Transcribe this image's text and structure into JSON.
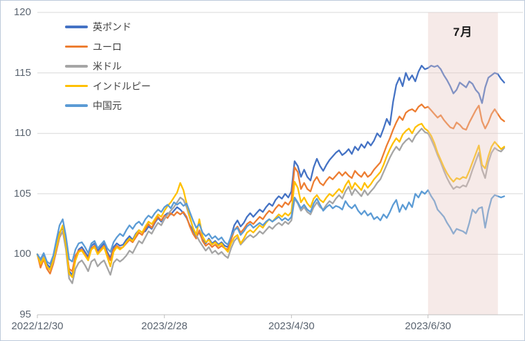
{
  "chart_data": {
    "type": "line",
    "title": "",
    "grid": "horizontal",
    "legend_position": "top-left-vertical",
    "y_axis": {
      "min": 95,
      "max": 120,
      "step": 5
    },
    "x_ticks": [
      {
        "label": "2022/12/30",
        "index": 0
      },
      {
        "label": "2023/2/28",
        "index": 40
      },
      {
        "label": "2023/4/30",
        "index": 80
      },
      {
        "label": "2023/6/30",
        "index": 123
      }
    ],
    "highlight": {
      "label": "7月",
      "start_index": 123,
      "end_index": 145,
      "color": "#e8c8c2",
      "opacity": 0.38
    },
    "axis_color": "#bfbfbf",
    "gridline_color": "#d9d9d9",
    "series": [
      {
        "name": "英ポンド",
        "color": "#4472C4",
        "values": [
          100.0,
          99.5,
          99.9,
          99.2,
          98.9,
          99.6,
          100.8,
          101.8,
          102.2,
          101.0,
          98.6,
          98.3,
          99.6,
          100.4,
          100.6,
          100.2,
          99.8,
          100.7,
          100.9,
          100.3,
          100.6,
          100.9,
          100.2,
          99.7,
          100.6,
          100.9,
          100.7,
          100.8,
          101.2,
          101.5,
          101.2,
          101.7,
          102.0,
          101.8,
          101.9,
          102.3,
          102.1,
          102.6,
          103.0,
          102.7,
          103.2,
          103.4,
          103.3,
          103.6,
          103.9,
          103.7,
          103.4,
          103.0,
          102.4,
          102.0,
          101.5,
          101.8,
          101.2,
          100.9,
          101.3,
          100.9,
          101.1,
          100.8,
          101.0,
          100.7,
          100.6,
          101.5,
          102.4,
          102.8,
          102.3,
          102.6,
          103.1,
          103.4,
          103.1,
          103.4,
          103.7,
          103.5,
          103.9,
          104.2,
          104.0,
          104.5,
          104.8,
          104.6,
          105.0,
          104.7,
          105.2,
          107.7,
          107.3,
          106.4,
          107.0,
          106.4,
          106.1,
          107.2,
          107.9,
          107.3,
          106.9,
          107.4,
          107.8,
          108.1,
          108.4,
          108.6,
          108.2,
          108.4,
          108.7,
          108.3,
          108.9,
          108.6,
          109.1,
          108.8,
          109.3,
          109.0,
          109.4,
          110.0,
          109.7,
          110.4,
          111.2,
          110.7,
          112.6,
          114.0,
          114.6,
          113.9,
          115.0,
          114.4,
          114.8,
          114.3,
          115.1,
          115.6,
          115.3,
          115.4,
          115.6,
          115.5,
          115.6,
          115.3,
          114.8,
          114.4,
          113.9,
          113.3,
          113.6,
          114.2,
          114.0,
          113.8,
          114.3,
          114.1,
          113.6,
          113.3,
          112.5,
          113.8,
          114.6,
          114.8,
          115.0,
          114.9,
          114.5,
          114.2
        ]
      },
      {
        "name": "ユーロ",
        "color": "#ED7D31",
        "values": [
          100.0,
          98.9,
          99.6,
          98.8,
          98.4,
          99.2,
          100.3,
          101.4,
          101.9,
          100.6,
          98.8,
          98.6,
          99.9,
          100.3,
          100.4,
          100.0,
          99.6,
          100.5,
          100.7,
          100.1,
          100.4,
          100.7,
          100.0,
          99.5,
          100.4,
          100.7,
          100.5,
          100.6,
          100.9,
          101.2,
          101.0,
          101.4,
          101.8,
          101.6,
          102.1,
          102.5,
          102.2,
          102.7,
          103.1,
          102.8,
          103.2,
          103.0,
          103.4,
          103.2,
          103.5,
          103.3,
          103.5,
          103.1,
          102.3,
          101.7,
          101.3,
          102.0,
          101.1,
          100.7,
          100.9,
          100.6,
          100.8,
          100.5,
          100.7,
          100.5,
          100.4,
          101.2,
          102.0,
          102.3,
          101.8,
          102.1,
          102.5,
          102.7,
          102.5,
          102.8,
          103.1,
          102.9,
          103.3,
          103.6,
          103.4,
          103.8,
          104.1,
          103.9,
          104.3,
          104.1,
          104.5,
          107.2,
          106.8,
          105.4,
          105.9,
          105.4,
          105.2,
          106.0,
          106.4,
          105.9,
          105.7,
          106.1,
          106.4,
          106.2,
          106.5,
          106.8,
          106.5,
          106.8,
          106.5,
          106.3,
          106.9,
          106.6,
          106.4,
          106.8,
          106.4,
          106.6,
          107.0,
          107.3,
          107.6,
          108.3,
          109.0,
          109.6,
          110.3,
          110.9,
          111.4,
          111.1,
          111.7,
          111.9,
          112.0,
          111.8,
          112.2,
          112.4,
          112.1,
          112.2,
          111.9,
          111.6,
          111.3,
          111.5,
          111.1,
          110.8,
          110.5,
          110.4,
          110.9,
          110.7,
          110.4,
          110.3,
          110.9,
          111.4,
          111.9,
          112.3,
          111.0,
          110.4,
          110.9,
          111.6,
          112.0,
          111.6,
          111.2,
          111.0
        ]
      },
      {
        "name": "米ドル",
        "color": "#A5A5A5",
        "values": [
          100.0,
          99.3,
          99.8,
          99.0,
          98.7,
          99.4,
          100.5,
          101.5,
          101.9,
          100.4,
          98.0,
          97.6,
          98.8,
          99.3,
          99.5,
          99.1,
          98.6,
          99.4,
          99.6,
          99.0,
          99.3,
          99.5,
          98.9,
          98.3,
          99.3,
          99.6,
          99.4,
          99.6,
          99.9,
          100.3,
          100.1,
          100.6,
          101.1,
          100.9,
          101.4,
          101.9,
          101.7,
          102.2,
          102.6,
          102.4,
          102.9,
          103.3,
          103.6,
          103.9,
          104.3,
          104.7,
          104.5,
          103.9,
          103.0,
          102.2,
          101.6,
          101.1,
          100.7,
          100.3,
          100.6,
          100.1,
          100.3,
          100.0,
          100.2,
          99.9,
          99.7,
          100.5,
          101.1,
          101.4,
          100.8,
          101.1,
          101.4,
          101.6,
          101.4,
          101.6,
          101.9,
          101.7,
          102.0,
          102.3,
          102.1,
          102.4,
          102.6,
          102.4,
          102.7,
          102.5,
          102.8,
          104.6,
          104.2,
          103.6,
          103.9,
          103.5,
          103.3,
          103.9,
          104.3,
          103.9,
          103.7,
          104.1,
          104.4,
          104.2,
          104.6,
          104.9,
          104.6,
          105.2,
          105.6,
          104.9,
          105.4,
          105.1,
          104.8,
          105.3,
          104.9,
          105.2,
          105.5,
          105.9,
          106.2,
          106.8,
          107.4,
          108.0,
          108.5,
          108.9,
          108.6,
          109.1,
          109.4,
          109.6,
          109.3,
          109.8,
          110.1,
          110.4,
          110.1,
          110.0,
          109.5,
          108.9,
          108.2,
          107.6,
          106.9,
          106.3,
          105.8,
          105.4,
          105.6,
          105.5,
          105.7,
          105.6,
          106.2,
          107.0,
          107.7,
          108.4,
          107.0,
          106.3,
          107.6,
          108.4,
          108.8,
          108.6,
          108.5,
          108.8
        ]
      },
      {
        "name": "インドルピー",
        "color": "#FFC000",
        "values": [
          100.0,
          99.2,
          99.7,
          99.0,
          98.7,
          99.5,
          100.6,
          101.7,
          102.4,
          100.8,
          98.4,
          98.1,
          99.5,
          100.2,
          100.3,
          99.9,
          99.5,
          100.4,
          100.6,
          100.0,
          100.3,
          100.6,
          99.8,
          99.0,
          100.2,
          100.6,
          100.4,
          100.6,
          101.0,
          101.3,
          101.1,
          101.6,
          102.0,
          101.8,
          102.3,
          102.7,
          102.5,
          102.9,
          103.3,
          103.1,
          103.6,
          104.0,
          104.3,
          104.7,
          105.1,
          105.9,
          105.3,
          104.2,
          103.1,
          102.2,
          101.6,
          102.9,
          101.5,
          101.0,
          101.2,
          100.8,
          101.0,
          100.7,
          100.9,
          100.5,
          100.2,
          100.9,
          101.4,
          101.6,
          100.9,
          101.3,
          101.8,
          102.0,
          101.8,
          102.1,
          102.4,
          102.2,
          102.6,
          102.9,
          102.7,
          103.0,
          103.3,
          103.1,
          103.4,
          103.2,
          103.5,
          106.0,
          105.5,
          104.3,
          104.7,
          104.2,
          103.9,
          104.6,
          104.9,
          104.5,
          104.3,
          104.7,
          105.0,
          104.8,
          105.1,
          105.4,
          105.1,
          105.7,
          106.1,
          105.4,
          105.9,
          105.6,
          105.3,
          105.9,
          105.5,
          105.8,
          106.2,
          106.5,
          106.8,
          107.4,
          108.1,
          108.7,
          109.2,
          109.6,
          109.3,
          109.9,
          110.2,
          110.4,
          110.0,
          110.5,
          110.7,
          110.8,
          110.4,
          110.2,
          109.8,
          109.2,
          108.4,
          107.8,
          107.2,
          106.7,
          106.3,
          106.0,
          106.3,
          106.2,
          106.4,
          106.3,
          106.9,
          107.6,
          108.3,
          109.0,
          107.4,
          107.1,
          108.1,
          108.9,
          109.3,
          109.0,
          108.7,
          108.9
        ]
      },
      {
        "name": "中国元",
        "color": "#5B9BD5",
        "values": [
          100.0,
          99.6,
          100.1,
          99.4,
          99.2,
          99.9,
          101.2,
          102.4,
          102.9,
          101.5,
          99.6,
          99.4,
          100.4,
          100.9,
          101.0,
          100.6,
          100.1,
          100.9,
          101.1,
          100.5,
          100.8,
          101.1,
          100.5,
          100.2,
          101.0,
          101.4,
          101.7,
          101.5,
          102.0,
          102.4,
          102.1,
          102.5,
          102.7,
          102.4,
          102.9,
          103.2,
          103.0,
          103.4,
          103.7,
          103.5,
          103.9,
          104.1,
          103.8,
          104.3,
          104.1,
          104.3,
          104.0,
          104.2,
          103.5,
          102.8,
          102.2,
          102.5,
          101.8,
          101.5,
          101.7,
          101.3,
          101.5,
          101.2,
          101.4,
          101.0,
          100.8,
          101.5,
          102.0,
          102.2,
          101.6,
          101.9,
          102.3,
          102.5,
          102.2,
          102.4,
          102.6,
          102.4,
          102.7,
          102.9,
          102.7,
          102.9,
          103.1,
          102.8,
          103.0,
          102.8,
          103.1,
          104.7,
          104.3,
          103.8,
          104.1,
          103.7,
          103.5,
          104.2,
          104.6,
          104.1,
          103.6,
          103.9,
          104.1,
          103.8,
          104.0,
          103.9,
          103.7,
          104.4,
          104.0,
          103.8,
          104.1,
          103.6,
          103.3,
          103.6,
          103.2,
          103.4,
          102.9,
          103.1,
          102.8,
          103.3,
          103.0,
          103.5,
          104.1,
          104.5,
          103.5,
          104.1,
          103.7,
          104.3,
          103.9,
          105.0,
          104.7,
          105.2,
          105.0,
          105.3,
          104.8,
          104.4,
          103.7,
          103.4,
          103.1,
          102.6,
          102.2,
          101.7,
          102.1,
          102.0,
          101.9,
          101.7,
          102.6,
          103.7,
          103.4,
          103.8,
          103.9,
          102.2,
          103.6,
          104.6,
          104.9,
          104.8,
          104.7,
          104.8
        ]
      }
    ]
  }
}
